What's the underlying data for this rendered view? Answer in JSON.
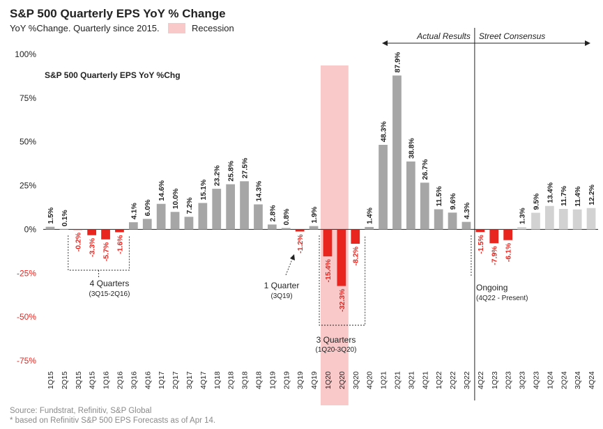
{
  "header": {
    "title": "S&P 500 Quarterly EPS YoY % Change",
    "subtitle": "YoY %Change. Quarterly since 2015.",
    "legend_recession": "Recession"
  },
  "footer": {
    "source": "Source: Fundstrat, Refinitiv, S&P Global",
    "note": "* based on  Refinitiv S&P 500 EPS Forecasts as of Apr 14."
  },
  "colors": {
    "actual_positive": "#a6a6a6",
    "negative": "#e8251f",
    "consensus": "#d2d2d2",
    "recession": "#f9c9c9"
  },
  "chart_data": {
    "type": "bar",
    "inner_title": "S&P 500 Quarterly EPS YoY %Chg",
    "ylim": [
      -75,
      100
    ],
    "yticks": [
      100,
      75,
      50,
      25,
      0,
      -25,
      -50,
      -75
    ],
    "ytick_labels": [
      "100%",
      "75%",
      "50%",
      "25%",
      "0%",
      "-25%",
      "-50%",
      "-75%"
    ],
    "categories": [
      "1Q15",
      "2Q15",
      "3Q15",
      "4Q15",
      "1Q16",
      "2Q16",
      "3Q16",
      "4Q16",
      "1Q17",
      "2Q17",
      "3Q17",
      "4Q17",
      "1Q18",
      "2Q18",
      "3Q18",
      "4Q18",
      "1Q19",
      "2Q19",
      "3Q19",
      "4Q19",
      "1Q20",
      "2Q20",
      "3Q20",
      "4Q20",
      "1Q21",
      "2Q21",
      "3Q21",
      "4Q21",
      "1Q22",
      "2Q22",
      "3Q22",
      "4Q22",
      "1Q23",
      "2Q23",
      "3Q23",
      "4Q23",
      "1Q24",
      "2Q24",
      "3Q24",
      "4Q24"
    ],
    "values": [
      1.5,
      0.1,
      -0.2,
      -3.3,
      -5.7,
      -1.6,
      4.1,
      6.0,
      14.6,
      10.0,
      7.2,
      15.1,
      23.2,
      25.8,
      27.5,
      14.3,
      2.8,
      0.8,
      -1.2,
      1.9,
      -15.4,
      -32.3,
      -8.2,
      1.4,
      48.3,
      87.9,
      38.8,
      26.7,
      11.5,
      9.6,
      4.3,
      -1.5,
      -7.9,
      -6.1,
      1.3,
      9.5,
      13.4,
      11.7,
      11.4,
      12.2
    ],
    "labels": [
      "1.5%",
      "0.1%",
      "-0.2%",
      "-3.3%",
      "-5.7%",
      "-1.6%",
      "4.1%",
      "6.0%",
      "14.6%",
      "10.0%",
      "7.2%",
      "15.1%",
      "23.2%",
      "25.8%",
      "27.5%",
      "14.3%",
      "2.8%",
      "0.8%",
      "-1.2%",
      "1.9%",
      "-15.4%",
      "-32.3%",
      "-8.2%",
      "1.4%",
      "48.3%",
      "87.9%",
      "38.8%",
      "26.7%",
      "11.5%",
      "9.6%",
      "4.3%",
      "-1.5%",
      "-7.9%",
      "-6.1%",
      "1.3%",
      "9.5%",
      "13.4%",
      "11.7%",
      "11.4%",
      "12.2%"
    ],
    "consensus_start_index": 34,
    "recession_range": [
      "1Q20",
      "2Q20"
    ],
    "period_labels": {
      "actual": "Actual Results",
      "consensus": "Street Consensus"
    },
    "annotations": [
      {
        "label": "4 Quarters",
        "sub": "(3Q15-2Q16)"
      },
      {
        "label": "1 Quarter",
        "sub": "(3Q19)"
      },
      {
        "label": "3 Quarters",
        "sub": "(1Q20-3Q20)"
      },
      {
        "label": "Ongoing",
        "sub": "(4Q22 - Present)"
      }
    ]
  }
}
